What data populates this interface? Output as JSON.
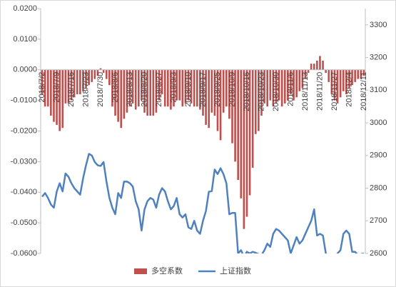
{
  "chart_data": {
    "type": "combo",
    "categories": [
      "2018/7/2",
      null,
      null,
      null,
      null,
      "2018/7/9",
      null,
      null,
      null,
      null,
      "2018/7/16",
      null,
      null,
      null,
      null,
      "2018/7/23",
      null,
      null,
      null,
      null,
      "2018/7/30",
      null,
      null,
      null,
      null,
      "2018/8/6",
      null,
      null,
      null,
      null,
      "2018/8/13",
      null,
      null,
      null,
      null,
      "2018/8/20",
      null,
      null,
      null,
      null,
      "2018/8/27",
      null,
      null,
      null,
      null,
      "2018/9/3",
      null,
      null,
      null,
      null,
      "2018/9/10",
      null,
      null,
      null,
      null,
      "2018/9/17",
      null,
      null,
      null,
      null,
      "2018/9/25",
      null,
      null,
      null,
      null,
      "2018/10/9",
      null,
      null,
      null,
      null,
      "2018/10/16",
      null,
      null,
      null,
      null,
      "2018/10/23",
      null,
      null,
      null,
      null,
      "2018/10/30",
      null,
      null,
      null,
      null,
      "2018/11/6",
      null,
      null,
      null,
      null,
      "2018/11/13",
      null,
      null,
      null,
      null,
      "2018/11/20",
      null,
      null,
      null,
      null,
      "2018/11/27",
      null,
      null,
      null,
      null,
      "2018/12/4",
      null,
      null,
      null,
      null,
      "2018/12/11"
    ],
    "series": [
      {
        "name": "多空系数",
        "type": "bar",
        "color": "#c0504d",
        "values": [
          -0.008,
          -0.012,
          -0.012,
          -0.015,
          -0.017,
          -0.018,
          -0.02,
          -0.019,
          -0.011,
          -0.011,
          -0.01,
          -0.009,
          -0.008,
          -0.008,
          -0.007,
          -0.006,
          -0.005,
          -0.004,
          -0.003,
          -0.002,
          0.0005,
          -0.001,
          -0.003,
          -0.005,
          -0.012,
          -0.015,
          -0.017,
          -0.019,
          -0.016,
          -0.014,
          -0.012,
          -0.011,
          -0.013,
          -0.012,
          -0.01,
          -0.014,
          -0.015,
          -0.015,
          -0.015,
          -0.014,
          -0.01,
          -0.008,
          -0.012,
          -0.012,
          -0.013,
          -0.012,
          -0.01,
          -0.01,
          -0.012,
          -0.011,
          -0.01,
          -0.011,
          -0.012,
          -0.012,
          -0.013,
          -0.015,
          -0.018,
          -0.019,
          -0.014,
          -0.015,
          -0.02,
          -0.023,
          -0.014,
          -0.012,
          -0.016,
          -0.024,
          -0.03,
          -0.036,
          -0.042,
          -0.052,
          -0.048,
          -0.041,
          -0.032,
          -0.021,
          -0.02,
          -0.015,
          -0.011,
          -0.012,
          -0.01,
          -0.012,
          -0.011,
          -0.01,
          -0.012,
          -0.011,
          -0.01,
          -0.008,
          -0.01,
          -0.009,
          -0.007,
          -0.006,
          -0.003,
          -0.001,
          0.002,
          0.002,
          0.003,
          0.0045,
          0.003,
          -0.001,
          -0.004,
          -0.008,
          -0.01,
          -0.011,
          -0.009,
          -0.007,
          -0.008,
          -0.006,
          -0.005,
          -0.004,
          -0.003,
          -0.003,
          -0.002
        ]
      },
      {
        "name": "上证指数",
        "type": "line",
        "axis": "y2",
        "color": "#4f81bd",
        "values": [
          2774,
          2785,
          2770,
          2750,
          2740,
          2790,
          2815,
          2790,
          2845,
          2835,
          2815,
          2800,
          2790,
          2780,
          2830,
          2870,
          2905,
          2900,
          2880,
          2870,
          2868,
          2880,
          2820,
          2770,
          2740,
          2720,
          2785,
          2770,
          2820,
          2820,
          2815,
          2805,
          2760,
          2735,
          2670,
          2735,
          2760,
          2770,
          2765,
          2740,
          2780,
          2800,
          2790,
          2760,
          2735,
          2745,
          2770,
          2720,
          2710,
          2720,
          2680,
          2675,
          2700,
          2670,
          2660,
          2700,
          2730,
          2789,
          2791,
          2857,
          2843,
          2861,
          2843,
          2815,
          2720,
          2724,
          2724,
          2600,
          2610,
          2590,
          2605,
          2600,
          2605,
          2602,
          2598,
          2595,
          2610,
          2630,
          2620,
          2660,
          2675,
          2670,
          2660,
          2650,
          2640,
          2600,
          2625,
          2650,
          2630,
          2640,
          2660,
          2680,
          2700,
          2735,
          2655,
          2660,
          2655,
          2600,
          2590,
          2585,
          2590,
          2600,
          2610,
          2660,
          2670,
          2660,
          2605,
          2605,
          2595,
          2598,
          2600
        ]
      }
    ],
    "ylim": [
      -0.06,
      0.02
    ],
    "yticks": [
      {
        "value": -0.06,
        "label": "-0.0600"
      },
      {
        "value": -0.05,
        "label": "-0.0500"
      },
      {
        "value": -0.04,
        "label": "-0.0400"
      },
      {
        "value": -0.03,
        "label": "-0.0300"
      },
      {
        "value": -0.02,
        "label": "-0.0200"
      },
      {
        "value": -0.01,
        "label": "-0.0100"
      },
      {
        "value": 0,
        "label": "0.0000"
      },
      {
        "value": 0.01,
        "label": "0.0100"
      },
      {
        "value": 0.02,
        "label": "0.0200"
      }
    ],
    "y2lim": [
      2600,
      3350
    ],
    "y2ticks": [
      2600,
      2700,
      2800,
      2900,
      3000,
      3100,
      3200,
      3300
    ],
    "legend": "bottom"
  }
}
